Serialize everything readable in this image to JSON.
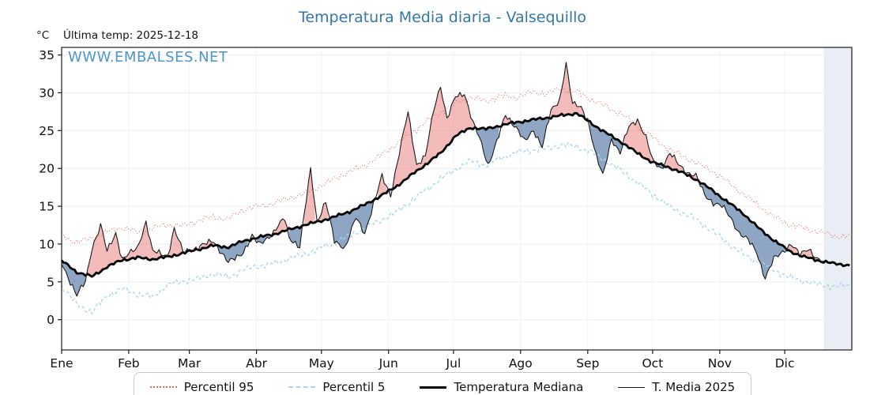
{
  "header": {
    "title": "Temperatura Media diaria - Valsequillo",
    "unit": "°C",
    "last_temp": "Última temp: 2025-12-18",
    "watermark": "WWW.EMBALSES.NET",
    "title_color": "#3577a9",
    "watermark_color": "#4e95c8"
  },
  "legend": {
    "items": [
      {
        "label": "Percentil 95"
      },
      {
        "label": "Percentil 5"
      },
      {
        "label": "Temperatura Mediana"
      },
      {
        "label": "T. Media 2025"
      }
    ]
  },
  "chart_data": {
    "type": "line",
    "title": "Temperatura Media diaria - Valsequillo",
    "xlabel": "",
    "ylabel": "°C",
    "ylim": [
      -4,
      36
    ],
    "yticks": [
      0,
      5,
      10,
      15,
      20,
      25,
      30,
      35
    ],
    "x_unit": "day_of_year",
    "months": [
      "Ene",
      "Feb",
      "Mar",
      "Abr",
      "May",
      "Jun",
      "Jul",
      "Ago",
      "Sep",
      "Oct",
      "Nov",
      "Dic"
    ],
    "month_start_days": [
      0,
      31,
      59,
      90,
      120,
      151,
      181,
      212,
      243,
      273,
      304,
      334
    ],
    "last_data_day": 352,
    "grid": true,
    "legend_position": "bottom",
    "fills": {
      "above_color": "rgba(233,120,120,0.5)",
      "below_color": "rgba(72,112,158,0.62)"
    },
    "series": [
      {
        "name": "Percentil 95",
        "color": "#e06a6a",
        "style": "dotted",
        "x": [
          0,
          7,
          14,
          21,
          28,
          35,
          42,
          49,
          56,
          63,
          70,
          77,
          84,
          91,
          98,
          105,
          112,
          119,
          126,
          133,
          140,
          147,
          154,
          161,
          168,
          175,
          182,
          189,
          196,
          203,
          210,
          217,
          224,
          231,
          238,
          245,
          252,
          259,
          266,
          273,
          280,
          287,
          294,
          301,
          308,
          315,
          322,
          329,
          336,
          343,
          350,
          357,
          364
        ],
        "y": [
          11.2,
          10.2,
          10.8,
          11.6,
          12.2,
          11.6,
          12.1,
          12.6,
          12.4,
          13.1,
          13.6,
          13.3,
          14.6,
          15.0,
          15.4,
          16.1,
          16.6,
          17.6,
          18.6,
          19.6,
          20.4,
          21.6,
          23.1,
          24.6,
          26.1,
          27.4,
          28.6,
          29.4,
          28.9,
          29.6,
          29.4,
          30.1,
          29.9,
          30.6,
          30.1,
          29.1,
          28.1,
          27.1,
          25.6,
          24.1,
          22.6,
          21.6,
          20.6,
          19.6,
          18.1,
          16.6,
          15.1,
          13.6,
          12.6,
          12.1,
          11.6,
          11.1,
          11.0
        ]
      },
      {
        "name": "Percentil 5",
        "color": "#a9d6ea",
        "style": "dashed",
        "x": [
          0,
          7,
          14,
          21,
          28,
          35,
          42,
          49,
          56,
          63,
          70,
          77,
          84,
          91,
          98,
          105,
          112,
          119,
          126,
          133,
          140,
          147,
          154,
          161,
          168,
          175,
          182,
          189,
          196,
          203,
          210,
          217,
          224,
          231,
          238,
          245,
          252,
          259,
          266,
          273,
          280,
          287,
          294,
          301,
          308,
          315,
          322,
          329,
          336,
          343,
          350,
          357,
          364
        ],
        "y": [
          4.5,
          2.0,
          1.0,
          3.2,
          4.1,
          3.4,
          3.0,
          4.6,
          5.1,
          5.4,
          6.1,
          5.6,
          6.6,
          7.1,
          7.4,
          8.1,
          8.6,
          9.4,
          10.1,
          11.1,
          12.1,
          13.1,
          14.1,
          15.6,
          17.1,
          18.6,
          19.9,
          21.0,
          20.4,
          21.4,
          22.1,
          22.4,
          22.6,
          23.1,
          22.9,
          22.1,
          20.9,
          19.6,
          18.1,
          16.6,
          15.1,
          14.1,
          13.1,
          11.6,
          10.1,
          8.6,
          7.6,
          6.6,
          5.6,
          5.1,
          4.6,
          4.4,
          4.5
        ]
      },
      {
        "name": "Temperatura Mediana",
        "color": "#000000",
        "style": "solid-thick",
        "x": [
          0,
          7,
          14,
          21,
          28,
          35,
          42,
          49,
          56,
          63,
          70,
          77,
          84,
          91,
          98,
          105,
          112,
          119,
          126,
          133,
          140,
          147,
          154,
          161,
          168,
          175,
          182,
          189,
          196,
          203,
          210,
          217,
          224,
          231,
          238,
          245,
          252,
          259,
          266,
          273,
          280,
          287,
          294,
          301,
          308,
          315,
          322,
          329,
          336,
          343,
          350,
          357,
          364
        ],
        "y": [
          7.8,
          6.3,
          5.7,
          7.0,
          7.9,
          8.2,
          8.0,
          8.3,
          8.8,
          9.3,
          9.8,
          9.6,
          10.4,
          10.9,
          11.3,
          11.9,
          12.5,
          13.0,
          13.6,
          14.3,
          15.2,
          16.3,
          17.5,
          19.0,
          20.5,
          22.0,
          24.3,
          25.4,
          25.2,
          25.7,
          26.1,
          26.4,
          26.7,
          27.0,
          27.3,
          25.9,
          24.6,
          23.4,
          22.0,
          20.8,
          20.2,
          19.4,
          18.4,
          17.0,
          15.5,
          14.0,
          12.1,
          10.5,
          9.1,
          8.3,
          7.8,
          7.4,
          7.2
        ]
      },
      {
        "name": "T. Media 2025",
        "color": "#1a1a1a",
        "style": "solid-thin",
        "x": [
          0,
          7,
          11,
          14,
          18,
          21,
          25,
          28,
          35,
          39,
          42,
          49,
          52,
          56,
          63,
          70,
          77,
          84,
          88,
          91,
          98,
          103,
          105,
          110,
          115,
          118,
          122,
          126,
          131,
          136,
          140,
          145,
          148,
          152,
          156,
          160,
          164,
          168,
          172,
          175,
          178,
          182,
          186,
          190,
          193,
          197,
          201,
          205,
          210,
          214,
          218,
          222,
          226,
          230,
          233,
          236,
          240,
          243,
          247,
          250,
          254,
          258,
          262,
          266,
          270,
          273,
          277,
          281,
          285,
          289,
          293,
          297,
          301,
          305,
          309,
          313,
          317,
          321,
          325,
          329,
          333,
          337,
          341,
          345,
          349,
          352
        ],
        "y": [
          7.5,
          3.2,
          5.0,
          9.5,
          12.5,
          9.0,
          11.5,
          8.0,
          9.5,
          13.0,
          9.0,
          8.5,
          12.0,
          9.0,
          9.5,
          10.5,
          7.5,
          9.0,
          11.0,
          10.0,
          11.5,
          13.5,
          11.0,
          9.5,
          20.0,
          13.0,
          15.5,
          10.5,
          9.5,
          13.5,
          11.5,
          16.0,
          19.0,
          16.5,
          22.0,
          27.5,
          20.5,
          21.5,
          28.0,
          31.0,
          26.5,
          29.5,
          30.0,
          26.0,
          24.0,
          20.5,
          23.5,
          27.0,
          25.5,
          23.5,
          25.0,
          23.0,
          27.5,
          29.0,
          34.0,
          28.5,
          28.0,
          26.5,
          21.5,
          19.0,
          24.0,
          22.0,
          25.5,
          26.5,
          24.0,
          21.0,
          20.0,
          22.0,
          20.5,
          19.5,
          19.0,
          16.5,
          15.5,
          15.0,
          13.5,
          11.5,
          10.5,
          9.0,
          5.5,
          8.0,
          9.0,
          10.0,
          8.5,
          9.5,
          8.0,
          7.5
        ]
      }
    ]
  }
}
